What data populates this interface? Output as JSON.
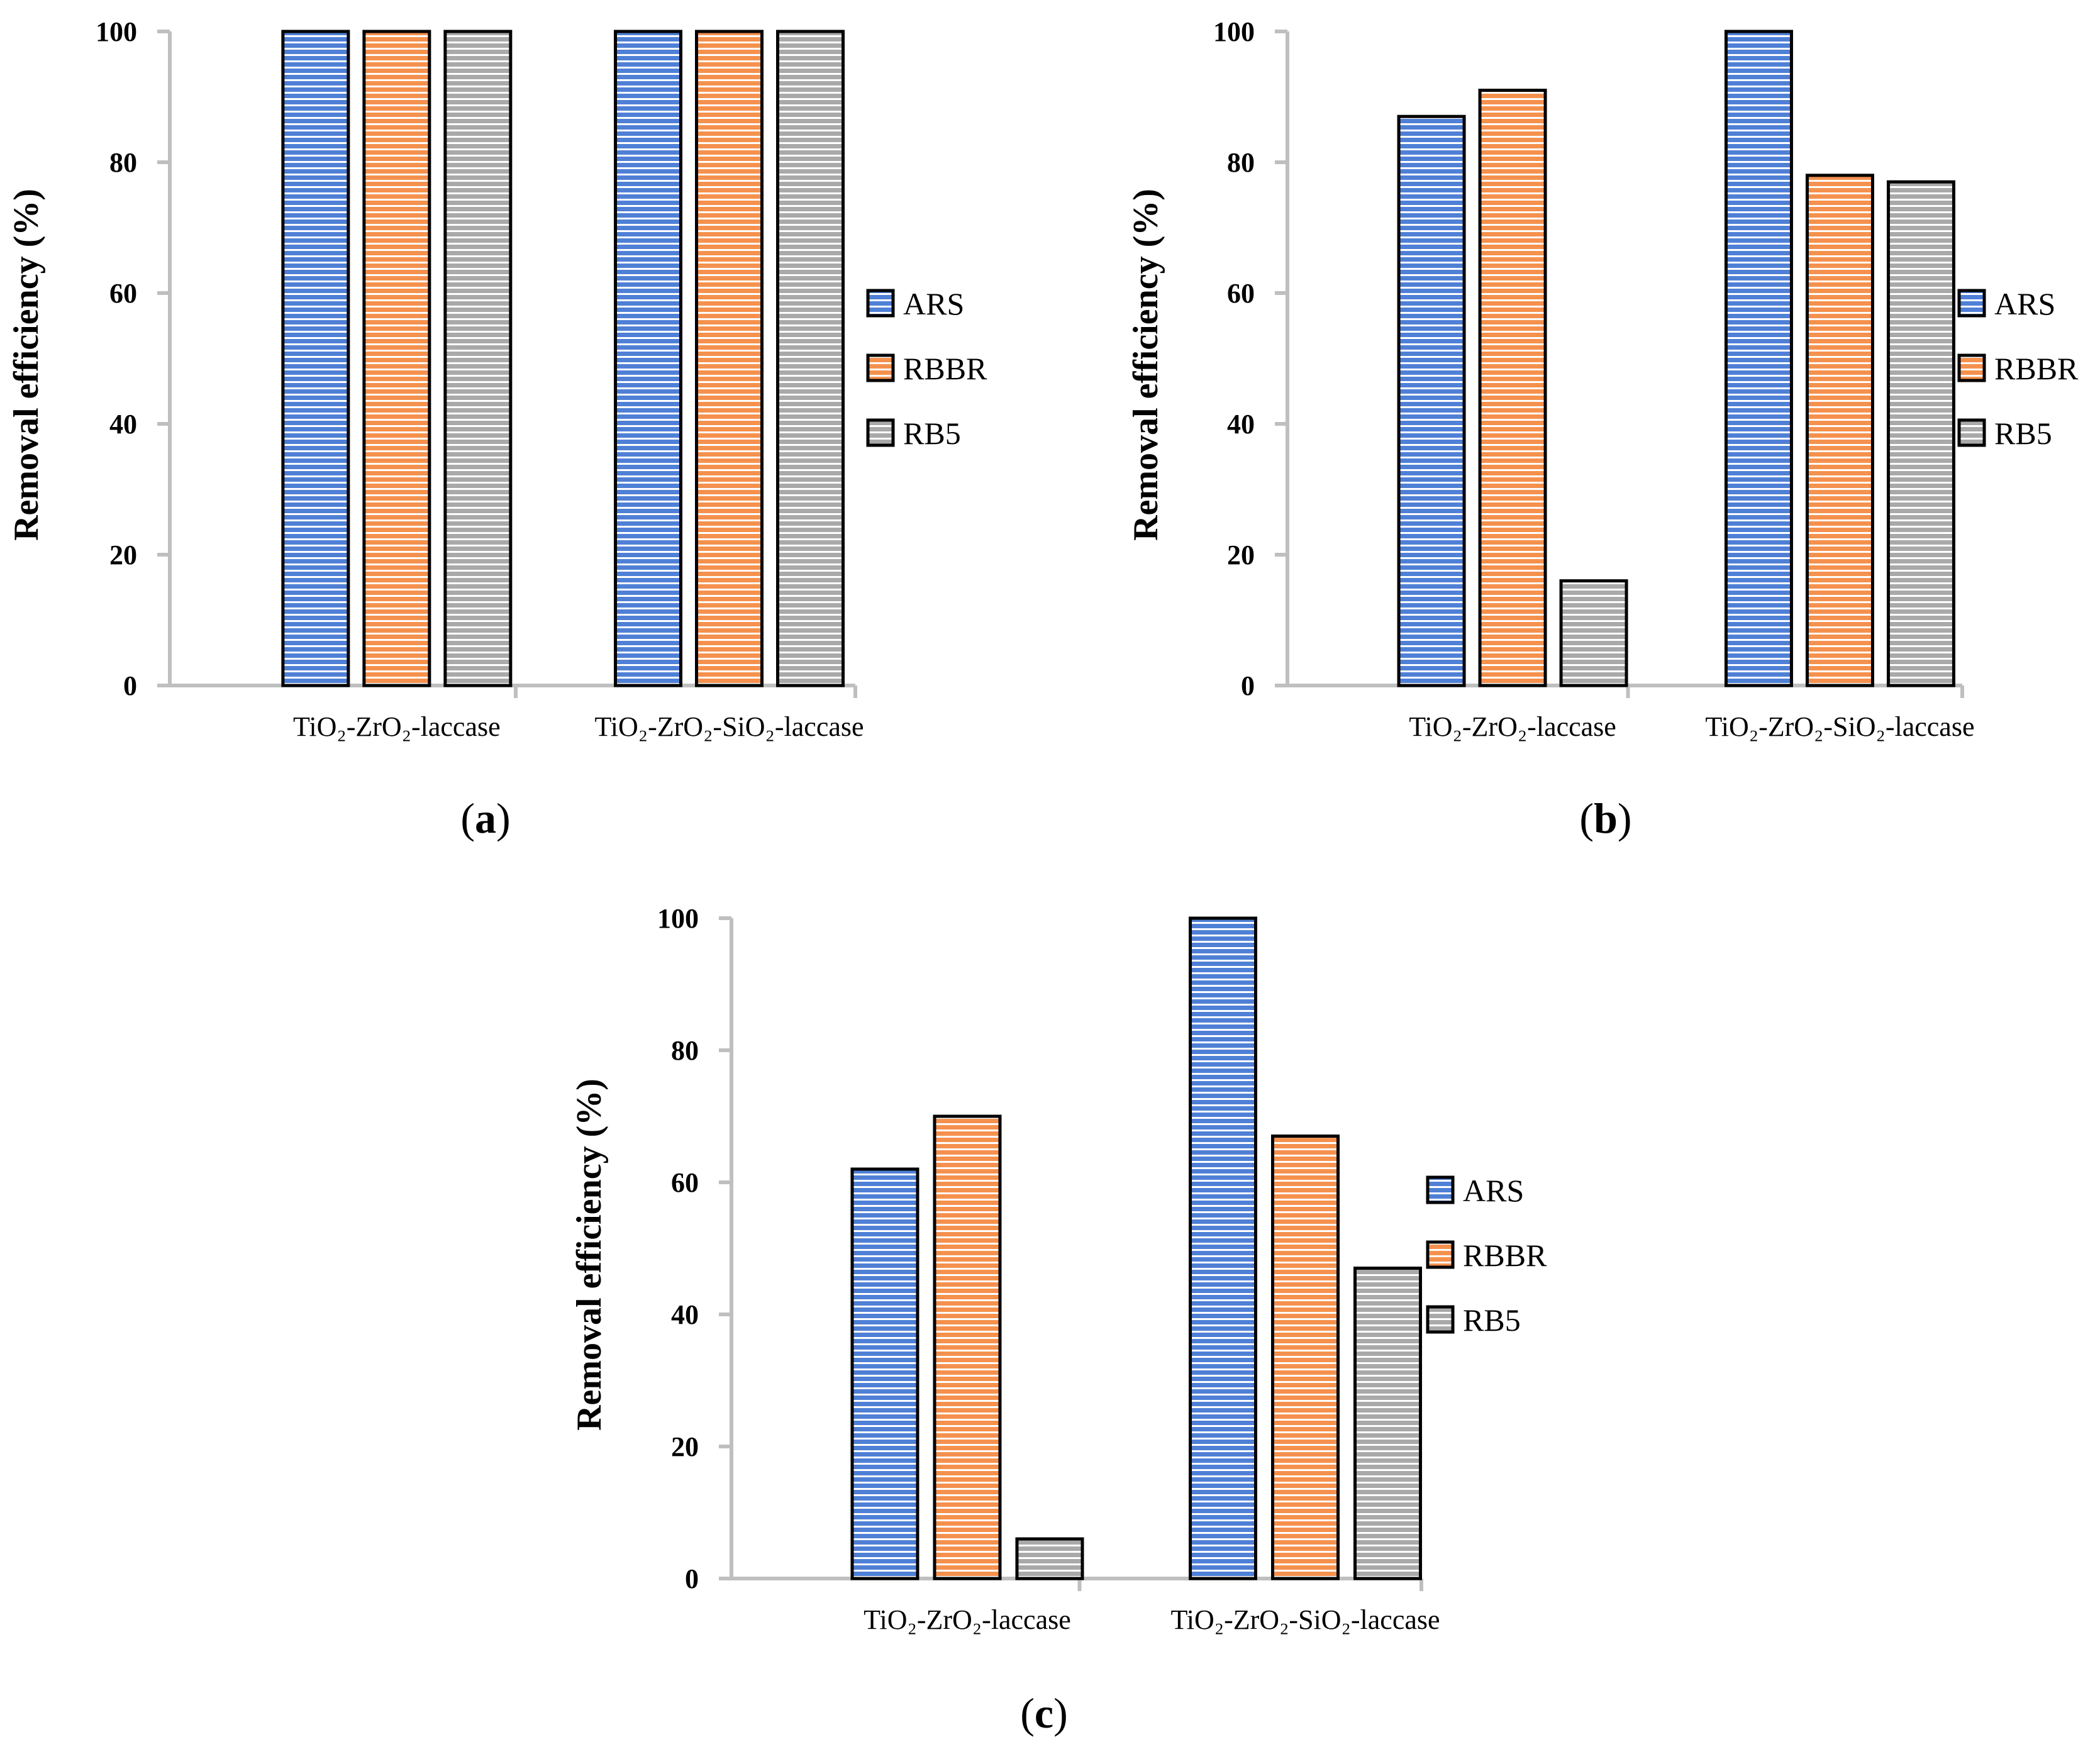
{
  "colors": {
    "ARS": "#4f80d6",
    "RBBR": "#f5914e",
    "RB5": "#a9a9a9",
    "stripe": "#ffffff",
    "axis": "#bfbfbf"
  },
  "chart_data": [
    {
      "panel": "a",
      "type": "bar",
      "categories": [
        "TiO₂-ZrO₂-laccase",
        "TiO₂-ZrO₂-SiO₂-laccase"
      ],
      "series": [
        {
          "name": "ARS",
          "values": [
            100,
            100
          ]
        },
        {
          "name": "RBBR",
          "values": [
            100,
            100
          ]
        },
        {
          "name": "RB5",
          "values": [
            100,
            100
          ]
        }
      ],
      "ylabel": "Removal efficiency (%)",
      "ylim": [
        0,
        100
      ],
      "yticks": [
        "0",
        "20",
        "40",
        "60",
        "80",
        "100"
      ],
      "legend": "right"
    },
    {
      "panel": "b",
      "type": "bar",
      "categories": [
        "TiO₂-ZrO₂-laccase",
        "TiO₂-ZrO₂-SiO₂-laccase"
      ],
      "series": [
        {
          "name": "ARS",
          "values": [
            87,
            100
          ]
        },
        {
          "name": "RBBR",
          "values": [
            91,
            78
          ]
        },
        {
          "name": "RB5",
          "values": [
            16,
            77
          ]
        }
      ],
      "ylabel": "Removal efficiency (%)",
      "ylim": [
        0,
        100
      ],
      "yticks": [
        "0",
        "20",
        "40",
        "60",
        "80",
        "100"
      ],
      "legend": "right"
    },
    {
      "panel": "c",
      "type": "bar",
      "categories": [
        "TiO₂-ZrO₂-laccase",
        "TiO₂-ZrO₂-SiO₂-laccase"
      ],
      "series": [
        {
          "name": "ARS",
          "values": [
            62,
            100
          ]
        },
        {
          "name": "RBBR",
          "values": [
            70,
            67
          ]
        },
        {
          "name": "RB5",
          "values": [
            6,
            47
          ]
        }
      ],
      "ylabel": "Removal efficiency (%)",
      "ylim": [
        0,
        100
      ],
      "yticks": [
        "0",
        "20",
        "40",
        "60",
        "80",
        "100"
      ],
      "legend": "right"
    }
  ],
  "panel_labels": {
    "a": "a",
    "b": "b",
    "c": "c"
  }
}
